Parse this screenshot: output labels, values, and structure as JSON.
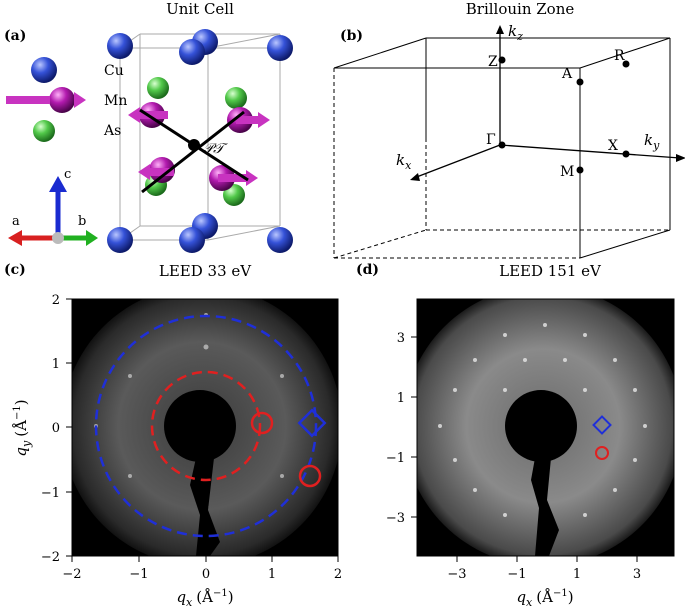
{
  "panels": {
    "a": {
      "label": "(a)",
      "title": "Unit Cell",
      "legend": [
        {
          "label": "Cu",
          "color": "#2b49c6"
        },
        {
          "label": "Mn",
          "color": "#a0129a"
        },
        {
          "label": "As",
          "color": "#3cb43c"
        }
      ],
      "axes": {
        "a": "a",
        "b": "b",
        "c": "c"
      },
      "pt_label": "𝒫𝒯"
    },
    "b": {
      "label": "(b)",
      "title": "Brillouin Zone",
      "axis_labels": {
        "kz": "k",
        "kz_sub": "z",
        "ky": "k",
        "ky_sub": "y",
        "kx": "k",
        "kx_sub": "x"
      },
      "points": [
        "Z",
        "A",
        "R",
        "Γ",
        "X",
        "M"
      ]
    },
    "c": {
      "label": "(c)",
      "title": "LEED 33 eV",
      "xlabel": "q",
      "xlabel_sub": "x",
      "xlabel_unit": "(Å",
      "xlabel_exp": "−1",
      "xlabel_close": ")",
      "ylabel": "q",
      "ylabel_sub": "y",
      "ylabel_unit": "(Å",
      "ylabel_exp": "−1",
      "ylabel_close": ")",
      "xticks": [
        "−2",
        "−1",
        "0",
        "1",
        "2"
      ],
      "yticks": [
        "2",
        "1",
        "0",
        "−1",
        "−2"
      ]
    },
    "d": {
      "label": "(d)",
      "title": "LEED 151 eV",
      "xlabel": "q",
      "xlabel_sub": "x",
      "xlabel_unit": "(Å",
      "xlabel_exp": "−1",
      "xlabel_close": ")",
      "xticks": [
        "−3",
        "−1",
        "1",
        "3"
      ],
      "yticks": [
        "3",
        "1",
        "−1",
        "−3"
      ]
    }
  },
  "colors": {
    "blue": "#1f2fd8",
    "red": "#e02020",
    "cu": "#2b49c6",
    "mn": "#a0129a",
    "as": "#3cb43c"
  }
}
